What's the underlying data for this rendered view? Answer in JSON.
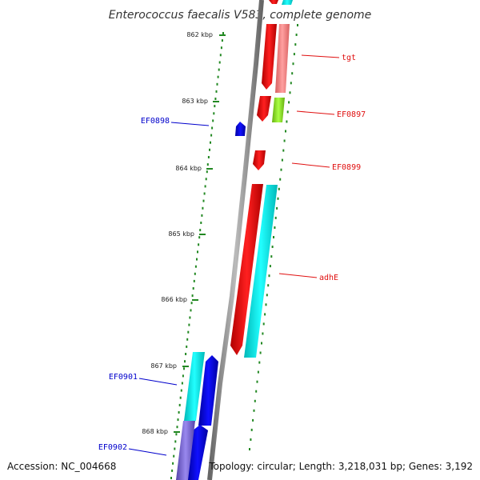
{
  "title": "Enterococcus faecalis V583, complete genome",
  "footer": {
    "accession": "Accession: NC_004668",
    "summary": "Topology: circular; Length: 3,218,031 bp; Genes: 3,192"
  },
  "scale": {
    "ticks": [
      "862 kbp",
      "863 kbp",
      "864 kbp",
      "865 kbp",
      "866 kbp",
      "867 kbp",
      "868 kbp"
    ]
  },
  "genes": {
    "reverse": [
      {
        "label": "EF0898",
        "color": "#0000ee"
      },
      {
        "label": "EF0901",
        "color": "#0000ee"
      },
      {
        "label": "EF0902",
        "color": "#0000ee"
      }
    ],
    "forward": [
      {
        "label": "tgt",
        "color": "#e01010"
      },
      {
        "label": "EF0897",
        "color": "#e01010"
      },
      {
        "label": "EF0899",
        "color": "#e01010"
      },
      {
        "label": "adhE",
        "color": "#e01010"
      }
    ]
  },
  "colors": {
    "forward_cds": "#ee0000",
    "reverse_cds": "#0000ee",
    "cog_cyan": "#00e5e5",
    "cog_pink": "#f08080",
    "cog_green": "#88dd22",
    "cog_purple": "#7766cc",
    "backbone": "#888888",
    "tick": "#228822"
  }
}
